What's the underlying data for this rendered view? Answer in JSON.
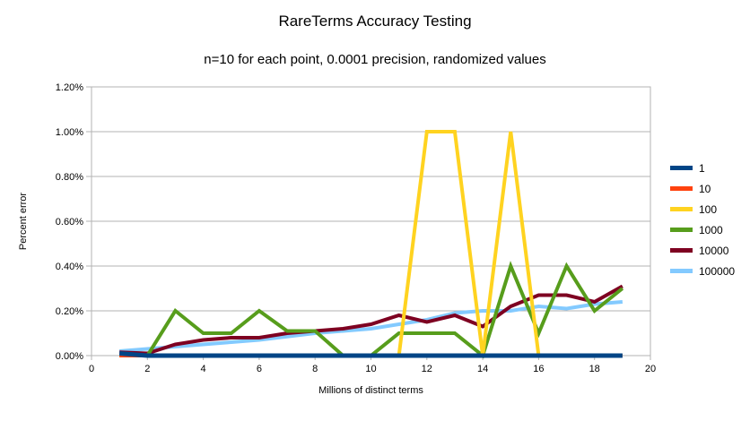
{
  "chart": {
    "title": "RareTerms Accuracy Testing",
    "subtitle": "n=10 for each point, 0.0001 precision, randomized values",
    "x_axis_title": "Millions of distinct terms",
    "y_axis_title": "Percent error"
  },
  "colors": {
    "background": "#ffffff",
    "grid": "#b3b3b3",
    "axis": "#b3b3b3",
    "text": "#000000"
  },
  "chart_data": {
    "type": "line",
    "title": "RareTerms Accuracy Testing",
    "subtitle": "n=10 for each point, 0.0001 precision, randomized values",
    "xlabel": "Millions of distinct terms",
    "ylabel": "Percent error",
    "xlim": [
      0,
      20
    ],
    "ylim_percent": [
      0,
      1.2
    ],
    "x_tick_labels": [
      "0",
      "2",
      "4",
      "6",
      "8",
      "10",
      "12",
      "14",
      "16",
      "18",
      "20"
    ],
    "y_tick_labels": [
      "0.00%",
      "0.20%",
      "0.40%",
      "0.60%",
      "0.80%",
      "1.00%",
      "1.20%"
    ],
    "grid": "horizontal",
    "legend_position": "right",
    "x": [
      1,
      2,
      3,
      4,
      5,
      6,
      7,
      8,
      9,
      10,
      11,
      12,
      13,
      14,
      15,
      16,
      17,
      18,
      19
    ],
    "series": [
      {
        "name": "1",
        "color": "#004586",
        "values_percent": [
          0.01,
          0,
          0,
          0,
          0,
          0,
          0,
          0,
          0,
          0,
          0,
          0,
          0,
          0,
          0,
          0,
          0,
          0,
          0
        ]
      },
      {
        "name": "10",
        "color": "#ff420e",
        "values_percent": [
          0,
          0,
          0,
          0,
          0,
          0,
          0,
          0,
          0,
          0,
          0,
          0,
          0,
          0,
          0,
          0,
          0,
          0,
          0
        ]
      },
      {
        "name": "100",
        "color": "#ffd320",
        "values_percent": [
          0,
          0,
          0,
          0,
          0,
          0,
          0,
          0,
          0,
          0,
          0,
          1.0,
          1.0,
          0,
          1.0,
          0,
          0,
          0,
          0
        ]
      },
      {
        "name": "1000",
        "color": "#579d1c",
        "values_percent": [
          0,
          0,
          0.2,
          0.1,
          0.1,
          0.2,
          0.11,
          0.11,
          0,
          0,
          0.1,
          0.1,
          0.1,
          0,
          0.4,
          0.1,
          0.4,
          0.2,
          0.3
        ]
      },
      {
        "name": "10000",
        "color": "#7e0021",
        "values_percent": [
          0.015,
          0.01,
          0.05,
          0.07,
          0.08,
          0.08,
          0.1,
          0.11,
          0.12,
          0.14,
          0.18,
          0.15,
          0.18,
          0.13,
          0.22,
          0.27,
          0.27,
          0.24,
          0.31
        ]
      },
      {
        "name": "100000",
        "color": "#83caff",
        "values_percent": [
          0.02,
          0.03,
          0.04,
          0.05,
          0.06,
          0.07,
          0.085,
          0.1,
          0.11,
          0.12,
          0.14,
          0.16,
          0.19,
          0.2,
          0.2,
          0.22,
          0.21,
          0.23,
          0.24
        ]
      }
    ],
    "draw_order": [
      "100000",
      "10000",
      "1000",
      "100",
      "10",
      "1"
    ]
  }
}
